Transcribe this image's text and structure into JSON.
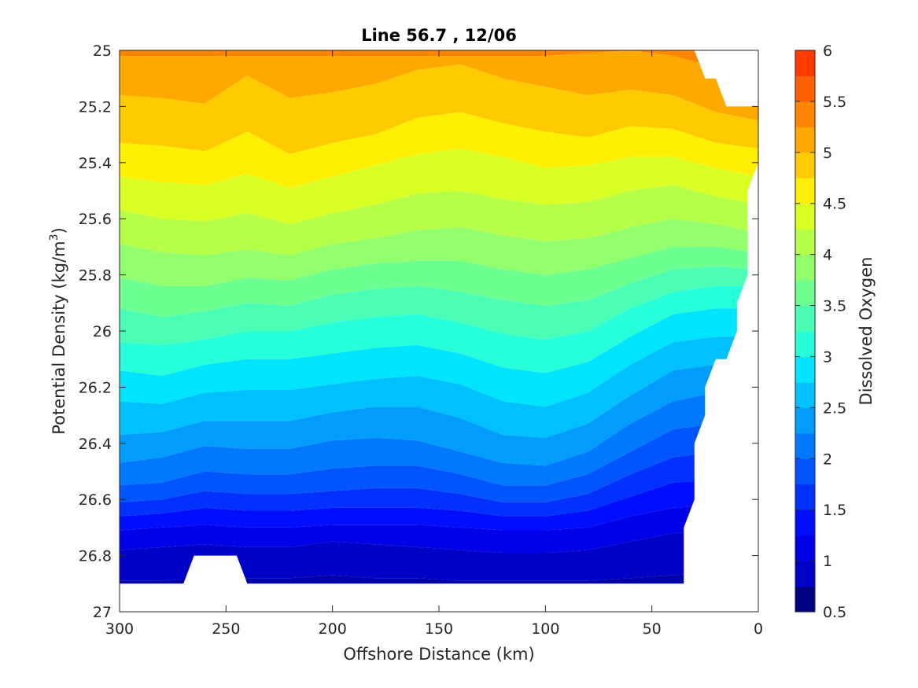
{
  "chart_data": {
    "type": "contour",
    "title": "Line 56.7 , 12/06",
    "xlabel": "Offshore Distance (km)",
    "ylabel": "Potential Density (kg/m",
    "ylabel_superscript": "3",
    "ylabel_close": ")",
    "xlim": [
      300,
      0
    ],
    "ylim": [
      25,
      27
    ],
    "x_reversed": true,
    "y_reversed": true,
    "xticks": [
      300,
      250,
      200,
      150,
      100,
      50,
      0
    ],
    "xtick_labels": [
      "300",
      "250",
      "200",
      "150",
      "100",
      "50",
      "0"
    ],
    "yticks": [
      25,
      25.2,
      25.4,
      25.6,
      25.8,
      26,
      26.2,
      26.4,
      26.6,
      26.8,
      27
    ],
    "ytick_labels": [
      "25",
      "25.2",
      "25.4",
      "25.6",
      "25.8",
      "26",
      "26.2",
      "26.4",
      "26.6",
      "26.8",
      "27"
    ],
    "colorbar": {
      "label": "Dissolved Oxygen",
      "range": [
        0.5,
        6
      ],
      "ticks": [
        0.5,
        1,
        1.5,
        2,
        2.5,
        3,
        3.5,
        4,
        4.5,
        5,
        5.5,
        6
      ],
      "tick_labels": [
        "0.5",
        "1",
        "1.5",
        "2",
        "2.5",
        "3",
        "3.5",
        "4",
        "4.5",
        "5",
        "5.5",
        "6"
      ],
      "colormap": "jet",
      "level_step": 0.25
    },
    "level_colors": [
      "#000082",
      "#0000A4",
      "#0000C6",
      "#0000E8",
      "#000DFF",
      "#0031FF",
      "#0055FF",
      "#0079FF",
      "#009DFF",
      "#00C1FF",
      "#00E5FF",
      "#26FFD9",
      "#4AFFB5",
      "#6EFF91",
      "#92FF6D",
      "#B6FF49",
      "#DAFF25",
      "#FFEF00",
      "#FFCB00",
      "#FFA800",
      "#FF8400",
      "#FF6000",
      "#FF3C00",
      "#FF1800",
      "#DC0000",
      "#B40000"
    ],
    "x_profile_km": [
      300,
      280,
      260,
      240,
      220,
      200,
      180,
      160,
      140,
      120,
      100,
      80,
      60,
      40,
      20,
      0
    ],
    "contour_levels": [
      {
        "value": 5.5,
        "sigma": [
          25.02,
          25.02,
          25.02,
          25.02,
          25.02,
          25.02,
          25.02,
          25.02,
          25.02,
          25.02,
          25.02,
          25.01,
          25.0,
          25.02,
          25.06,
          25.1
        ]
      },
      {
        "value": 5.25,
        "sigma": [
          25.16,
          25.17,
          25.19,
          25.09,
          25.17,
          25.15,
          25.12,
          25.07,
          25.05,
          25.1,
          25.13,
          25.16,
          25.14,
          25.16,
          25.22,
          25.25
        ]
      },
      {
        "value": 5.0,
        "sigma": [
          25.33,
          25.34,
          25.36,
          25.29,
          25.37,
          25.33,
          25.3,
          25.24,
          25.22,
          25.26,
          25.29,
          25.31,
          25.27,
          25.28,
          25.33,
          25.35
        ]
      },
      {
        "value": 4.75,
        "sigma": [
          25.45,
          25.47,
          25.48,
          25.44,
          25.49,
          25.45,
          25.41,
          25.37,
          25.35,
          25.38,
          25.42,
          25.41,
          25.38,
          25.38,
          25.42,
          25.45
        ]
      },
      {
        "value": 4.5,
        "sigma": [
          25.57,
          25.6,
          25.61,
          25.58,
          25.62,
          25.58,
          25.55,
          25.51,
          25.5,
          25.53,
          25.55,
          25.54,
          25.5,
          25.48,
          25.52,
          25.55
        ]
      },
      {
        "value": 4.25,
        "sigma": [
          25.69,
          25.72,
          25.73,
          25.71,
          25.73,
          25.69,
          25.67,
          25.64,
          25.63,
          25.66,
          25.68,
          25.67,
          25.63,
          25.6,
          25.62,
          25.65
        ]
      },
      {
        "value": 4.0,
        "sigma": [
          25.81,
          25.84,
          25.84,
          25.81,
          25.82,
          25.78,
          25.76,
          25.75,
          25.75,
          25.78,
          25.8,
          25.78,
          25.74,
          25.7,
          25.7,
          25.72
        ]
      },
      {
        "value": 3.75,
        "sigma": [
          25.92,
          25.95,
          25.93,
          25.9,
          25.91,
          25.87,
          25.85,
          25.84,
          25.86,
          25.89,
          25.91,
          25.89,
          25.83,
          25.78,
          25.77,
          25.78
        ]
      },
      {
        "value": 3.5,
        "sigma": [
          26.04,
          26.05,
          26.03,
          26.0,
          26.0,
          25.97,
          25.95,
          25.94,
          25.97,
          26.01,
          26.03,
          26.0,
          25.92,
          25.86,
          25.84,
          25.84
        ]
      },
      {
        "value": 3.25,
        "sigma": [
          26.14,
          26.16,
          26.12,
          26.1,
          26.1,
          26.08,
          26.06,
          26.05,
          26.08,
          26.13,
          26.15,
          26.11,
          26.02,
          25.94,
          25.92,
          25.92
        ]
      },
      {
        "value": 3.0,
        "sigma": [
          26.25,
          26.26,
          26.22,
          26.21,
          26.21,
          26.19,
          26.17,
          26.16,
          26.19,
          26.25,
          26.27,
          26.22,
          26.12,
          26.04,
          26.02,
          26.02
        ]
      },
      {
        "value": 2.75,
        "sigma": [
          26.37,
          26.36,
          26.32,
          26.32,
          26.32,
          26.29,
          26.27,
          26.27,
          26.31,
          26.37,
          26.38,
          26.33,
          26.23,
          26.14,
          26.12,
          26.12
        ]
      },
      {
        "value": 2.5,
        "sigma": [
          26.47,
          26.45,
          26.41,
          26.42,
          26.42,
          26.39,
          26.38,
          26.39,
          26.43,
          26.47,
          26.48,
          26.43,
          26.33,
          26.25,
          26.22,
          26.22
        ]
      },
      {
        "value": 2.25,
        "sigma": [
          26.55,
          26.54,
          26.5,
          26.51,
          26.51,
          26.49,
          26.48,
          26.48,
          26.51,
          26.55,
          26.55,
          26.51,
          26.43,
          26.35,
          26.33,
          26.33
        ]
      },
      {
        "value": 2.0,
        "sigma": [
          26.61,
          26.6,
          26.57,
          26.58,
          26.58,
          26.57,
          26.56,
          26.56,
          26.58,
          26.61,
          26.61,
          26.58,
          26.51,
          26.45,
          26.43,
          26.43
        ]
      },
      {
        "value": 1.75,
        "sigma": [
          26.66,
          26.65,
          26.63,
          26.64,
          26.64,
          26.63,
          26.63,
          26.63,
          26.64,
          26.66,
          26.66,
          26.64,
          26.59,
          26.54,
          26.53,
          26.53
        ]
      },
      {
        "value": 1.5,
        "sigma": [
          26.71,
          26.7,
          26.69,
          26.7,
          26.7,
          26.69,
          26.69,
          26.69,
          26.7,
          26.71,
          26.71,
          26.7,
          26.66,
          26.63,
          26.62,
          26.62
        ]
      },
      {
        "value": 1.25,
        "sigma": [
          26.78,
          26.77,
          26.76,
          26.77,
          26.77,
          26.75,
          26.76,
          26.77,
          26.78,
          26.79,
          26.79,
          26.78,
          26.75,
          26.72,
          26.71,
          26.71
        ]
      },
      {
        "value": 1.0,
        "sigma": [
          26.89,
          26.89,
          26.88,
          26.88,
          26.88,
          26.87,
          26.88,
          26.88,
          26.89,
          26.89,
          26.89,
          26.89,
          26.88,
          26.87,
          26.86,
          26.86
        ]
      }
    ],
    "data_extent": {
      "top_right_boundary": [
        [
          30,
          25.0
        ],
        [
          25,
          25.1
        ],
        [
          20,
          25.1
        ],
        [
          15,
          25.2
        ],
        [
          0,
          25.2
        ],
        [
          0,
          25.4
        ],
        [
          5,
          25.5
        ],
        [
          5,
          25.6
        ],
        [
          5,
          25.8
        ],
        [
          10,
          25.9
        ],
        [
          10,
          26.0
        ],
        [
          15,
          26.1
        ],
        [
          20,
          26.1
        ],
        [
          25,
          26.2
        ],
        [
          25,
          26.3
        ],
        [
          30,
          26.4
        ],
        [
          30,
          26.6
        ],
        [
          35,
          26.7
        ],
        [
          35,
          26.9
        ]
      ],
      "bottom_boundary": [
        [
          35,
          26.9
        ],
        [
          240,
          26.9
        ],
        [
          245,
          26.8
        ],
        [
          265,
          26.8
        ],
        [
          270,
          26.9
        ],
        [
          300,
          26.9
        ]
      ]
    }
  }
}
